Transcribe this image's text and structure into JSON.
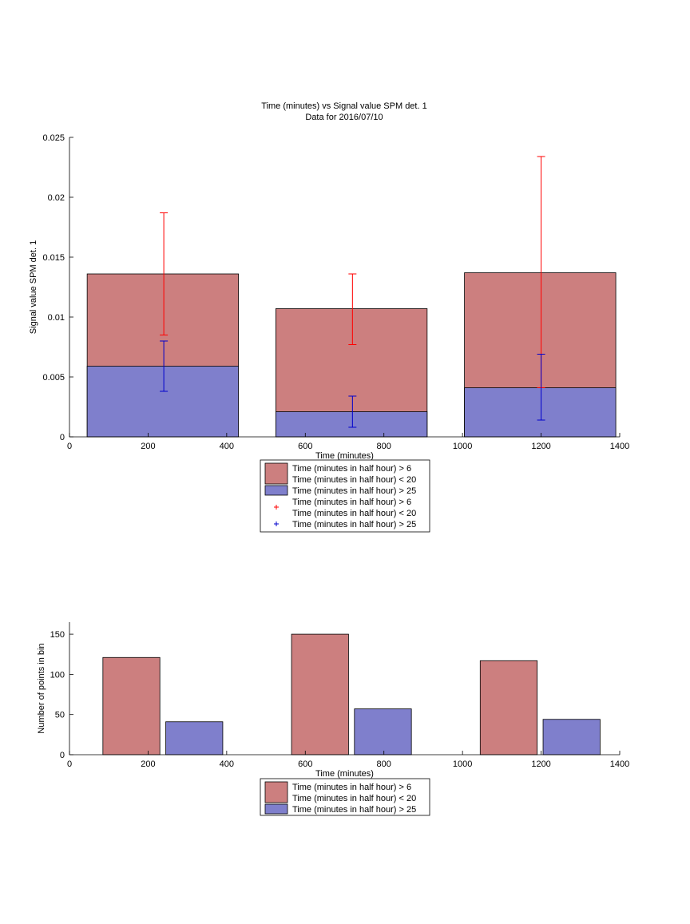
{
  "figure": {
    "title_line1": "Time (minutes) vs Signal value SPM det. 1",
    "title_line2": "Data for 2016/07/10"
  },
  "colors": {
    "red_bar": "#cc7f7f",
    "blue_bar": "#7f7fcc",
    "red_err": "#ff0000",
    "blue_err": "#0000cc"
  },
  "chart_data": [
    {
      "type": "bar",
      "xlabel": "Time (minutes)",
      "ylabel": "Signal value SPM det. 1",
      "xlim": [
        0,
        1400
      ],
      "ylim": [
        0,
        0.025
      ],
      "xticks": [
        0,
        200,
        400,
        600,
        800,
        1000,
        1200,
        1400
      ],
      "xtick_labels": [
        "0",
        "200",
        "400",
        "600",
        "800",
        "1000",
        "1200",
        "1400"
      ],
      "yticks": [
        0,
        0.005,
        0.01,
        0.015,
        0.02,
        0.025
      ],
      "ytick_labels": [
        "0",
        "0.005",
        "0.01",
        "0.015",
        "0.02",
        "0.025"
      ],
      "bars": [
        {
          "series": 0,
          "x0": 45,
          "x1": 430,
          "value": 0.0136
        },
        {
          "series": 0,
          "x0": 525,
          "x1": 910,
          "value": 0.0107
        },
        {
          "series": 0,
          "x0": 1005,
          "x1": 1390,
          "value": 0.0137
        },
        {
          "series": 1,
          "x0": 45,
          "x1": 430,
          "value": 0.0059
        },
        {
          "series": 1,
          "x0": 525,
          "x1": 910,
          "value": 0.0021
        },
        {
          "series": 1,
          "x0": 1005,
          "x1": 1390,
          "value": 0.0041
        }
      ],
      "errorbars": [
        {
          "series": 0,
          "x": 240,
          "low": 0.0085,
          "high": 0.0187
        },
        {
          "series": 0,
          "x": 720,
          "low": 0.0077,
          "high": 0.0136
        },
        {
          "series": 0,
          "x": 1200,
          "low": 0.0041,
          "high": 0.0234
        },
        {
          "series": 1,
          "x": 240,
          "low": 0.0038,
          "high": 0.008
        },
        {
          "series": 1,
          "x": 720,
          "low": 0.0008,
          "high": 0.0034
        },
        {
          "series": 1,
          "x": 1200,
          "low": 0.0014,
          "high": 0.0069
        }
      ],
      "legend": [
        {
          "kind": "patch",
          "color": "red_bar",
          "lines": [
            "Time (minutes in half hour) > 6",
            "Time (minutes in half hour) < 20"
          ]
        },
        {
          "kind": "patch",
          "color": "blue_bar",
          "lines": [
            "Time (minutes in half hour) > 25"
          ]
        },
        {
          "kind": "marker",
          "color": "red_err",
          "lines": [
            "Time (minutes in half hour) > 6",
            "Time (minutes in half hour) < 20"
          ]
        },
        {
          "kind": "marker",
          "color": "blue_err",
          "lines": [
            "Time (minutes in half hour) > 25"
          ]
        }
      ]
    },
    {
      "type": "bar",
      "xlabel": "Time (minutes)",
      "ylabel": "Number of points in bin",
      "xlim": [
        0,
        1400
      ],
      "ylim": [
        0,
        165
      ],
      "xticks": [
        0,
        200,
        400,
        600,
        800,
        1000,
        1200,
        1400
      ],
      "xtick_labels": [
        "0",
        "200",
        "400",
        "600",
        "800",
        "1000",
        "1200",
        "1400"
      ],
      "yticks": [
        0,
        50,
        100,
        150
      ],
      "ytick_labels": [
        "0",
        "50",
        "100",
        "150"
      ],
      "bars": [
        {
          "series": 0,
          "x0": 85,
          "x1": 230,
          "value": 121
        },
        {
          "series": 0,
          "x0": 565,
          "x1": 710,
          "value": 150
        },
        {
          "series": 0,
          "x0": 1045,
          "x1": 1190,
          "value": 117
        },
        {
          "series": 1,
          "x0": 245,
          "x1": 390,
          "value": 41
        },
        {
          "series": 1,
          "x0": 725,
          "x1": 870,
          "value": 57
        },
        {
          "series": 1,
          "x0": 1205,
          "x1": 1350,
          "value": 44
        }
      ],
      "errorbars": [],
      "legend": [
        {
          "kind": "patch",
          "color": "red_bar",
          "lines": [
            "Time (minutes in half hour) > 6",
            "Time (minutes in half hour) < 20"
          ]
        },
        {
          "kind": "patch",
          "color": "blue_bar",
          "lines": [
            "Time (minutes in half hour) > 25"
          ]
        }
      ]
    }
  ]
}
